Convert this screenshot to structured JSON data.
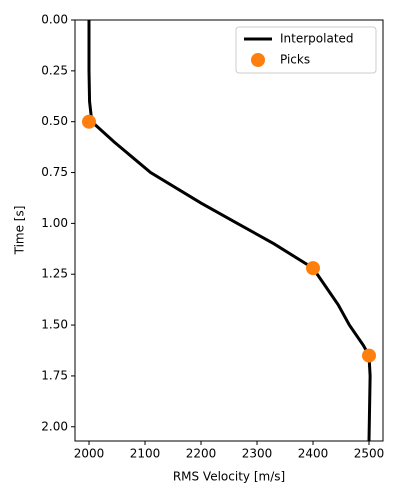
{
  "chart_data": {
    "type": "line",
    "xlabel": "RMS Velocity [m/s]",
    "ylabel": "Time [s]",
    "xlim": [
      1975,
      2525
    ],
    "xticks": [
      2000,
      2100,
      2200,
      2300,
      2400,
      2500
    ],
    "ylim": [
      2.07,
      0
    ],
    "y_inverted": true,
    "yticks": [
      {
        "value": 0,
        "label": "0.00"
      },
      0.25,
      {
        "value": 0.5,
        "label": "0.50"
      },
      0.75,
      {
        "value": 1,
        "label": "1.00"
      },
      1.25,
      {
        "value": 1.5,
        "label": "1.50"
      },
      1.75,
      {
        "value": 2,
        "label": "2.00"
      }
    ],
    "legend": "upper right",
    "series": [
      {
        "name": "Interpolated",
        "kind": "line",
        "color": "#000000",
        "x": [
          2000,
          2000,
          2001,
          2003,
          2005,
          2045,
          2110,
          2200,
          2265,
          2330,
          2400,
          2420,
          2445,
          2465,
          2490,
          2500,
          2502,
          2500
        ],
        "values": [
          0,
          0.25,
          0.4,
          0.45,
          0.5,
          0.6,
          0.75,
          0.9,
          1.0,
          1.1,
          1.22,
          1.3,
          1.4,
          1.5,
          1.6,
          1.65,
          1.75,
          2.07
        ]
      },
      {
        "name": "Picks",
        "kind": "marker",
        "color": "#ff7f0e",
        "x": [
          2000,
          2400,
          2500
        ],
        "values": [
          0.5,
          1.22,
          1.65
        ]
      }
    ]
  }
}
